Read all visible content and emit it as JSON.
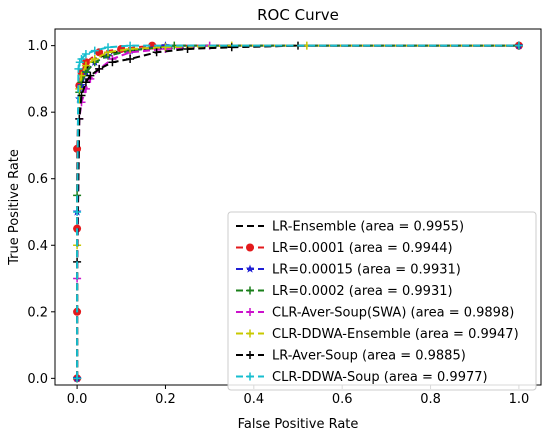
{
  "chart_data": {
    "type": "line",
    "title": "ROC Curve",
    "xlabel": "False Positive Rate",
    "ylabel": "True Positive Rate",
    "xlim": [
      -0.05,
      1.05
    ],
    "ylim": [
      -0.02,
      1.05
    ],
    "xticks": [
      "0.0",
      "0.2",
      "0.4",
      "0.6",
      "0.8",
      "1.0"
    ],
    "yticks": [
      "0.0",
      "0.2",
      "0.4",
      "0.6",
      "0.8",
      "1.0"
    ],
    "legend_position": "lower-right",
    "grid": false,
    "series": [
      {
        "name": "LR-Ensemble (area = 0.9955)",
        "color": "#000000",
        "marker": "none",
        "dashed": true,
        "x": [
          0,
          0,
          0.005,
          0.01,
          0.02,
          0.04,
          0.08,
          0.15,
          0.3,
          0.5,
          1.0
        ],
        "y": [
          0,
          0.6,
          0.85,
          0.9,
          0.93,
          0.96,
          0.98,
          0.99,
          0.995,
          1.0,
          1.0
        ]
      },
      {
        "name": "LR=0.0001 (area = 0.9944)",
        "color": "#e31a1c",
        "marker": "circle",
        "dashed": true,
        "x": [
          0,
          0,
          0,
          0,
          0.005,
          0.01,
          0.02,
          0.05,
          0.1,
          0.17,
          1.0
        ],
        "y": [
          0,
          0.2,
          0.45,
          0.69,
          0.88,
          0.92,
          0.95,
          0.98,
          0.99,
          1.0,
          1.0
        ]
      },
      {
        "name": "LR=0.00015 (area = 0.9931)",
        "color": "#1f1fd4",
        "marker": "star",
        "dashed": true,
        "x": [
          0,
          0,
          0.005,
          0.01,
          0.02,
          0.04,
          0.07,
          0.12,
          0.2,
          1.0
        ],
        "y": [
          0,
          0.5,
          0.84,
          0.88,
          0.92,
          0.95,
          0.97,
          0.985,
          1.0,
          1.0
        ]
      },
      {
        "name": "LR=0.0002 (area = 0.9931)",
        "color": "#1a7f1a",
        "marker": "tick",
        "dashed": true,
        "x": [
          0,
          0,
          0.005,
          0.01,
          0.02,
          0.04,
          0.07,
          0.12,
          0.22,
          1.0
        ],
        "y": [
          0,
          0.55,
          0.86,
          0.89,
          0.92,
          0.95,
          0.97,
          0.985,
          1.0,
          1.0
        ]
      },
      {
        "name": "CLR-Aver-Soup(SWA) (area = 0.9898)",
        "color": "#cc11cc",
        "marker": "tick",
        "dashed": true,
        "x": [
          0,
          0,
          0.005,
          0.01,
          0.02,
          0.03,
          0.05,
          0.08,
          0.12,
          0.2,
          0.3,
          1.0
        ],
        "y": [
          0,
          0.3,
          0.78,
          0.83,
          0.87,
          0.9,
          0.93,
          0.96,
          0.98,
          0.99,
          1.0,
          1.0
        ]
      },
      {
        "name": "CLR-DDWA-Ensemble (area = 0.9947)",
        "color": "#c8c800",
        "marker": "tick",
        "dashed": true,
        "x": [
          0,
          0,
          0.005,
          0.01,
          0.02,
          0.04,
          0.07,
          0.12,
          0.2,
          0.35,
          0.52,
          1.0
        ],
        "y": [
          0,
          0.4,
          0.87,
          0.91,
          0.94,
          0.96,
          0.98,
          0.99,
          0.995,
          1.0,
          1.0,
          1.0
        ]
      },
      {
        "name": "LR-Aver-Soup (area = 0.9885)",
        "color": "#000000",
        "marker": "tick",
        "dashed": true,
        "x": [
          0,
          0,
          0.005,
          0.01,
          0.02,
          0.03,
          0.05,
          0.08,
          0.12,
          0.18,
          0.25,
          0.35,
          0.5,
          1.0
        ],
        "y": [
          0,
          0.35,
          0.78,
          0.85,
          0.89,
          0.91,
          0.93,
          0.95,
          0.96,
          0.98,
          0.99,
          0.995,
          1.0,
          1.0
        ]
      },
      {
        "name": "CLR-DDWA-Soup (area = 0.9977)",
        "color": "#17becf",
        "marker": "tick",
        "dashed": true,
        "x": [
          0,
          0,
          0.003,
          0.006,
          0.01,
          0.02,
          0.04,
          0.07,
          0.12,
          1.0
        ],
        "y": [
          0,
          0.5,
          0.93,
          0.95,
          0.96,
          0.975,
          0.985,
          0.995,
          1.0,
          1.0
        ]
      }
    ]
  }
}
